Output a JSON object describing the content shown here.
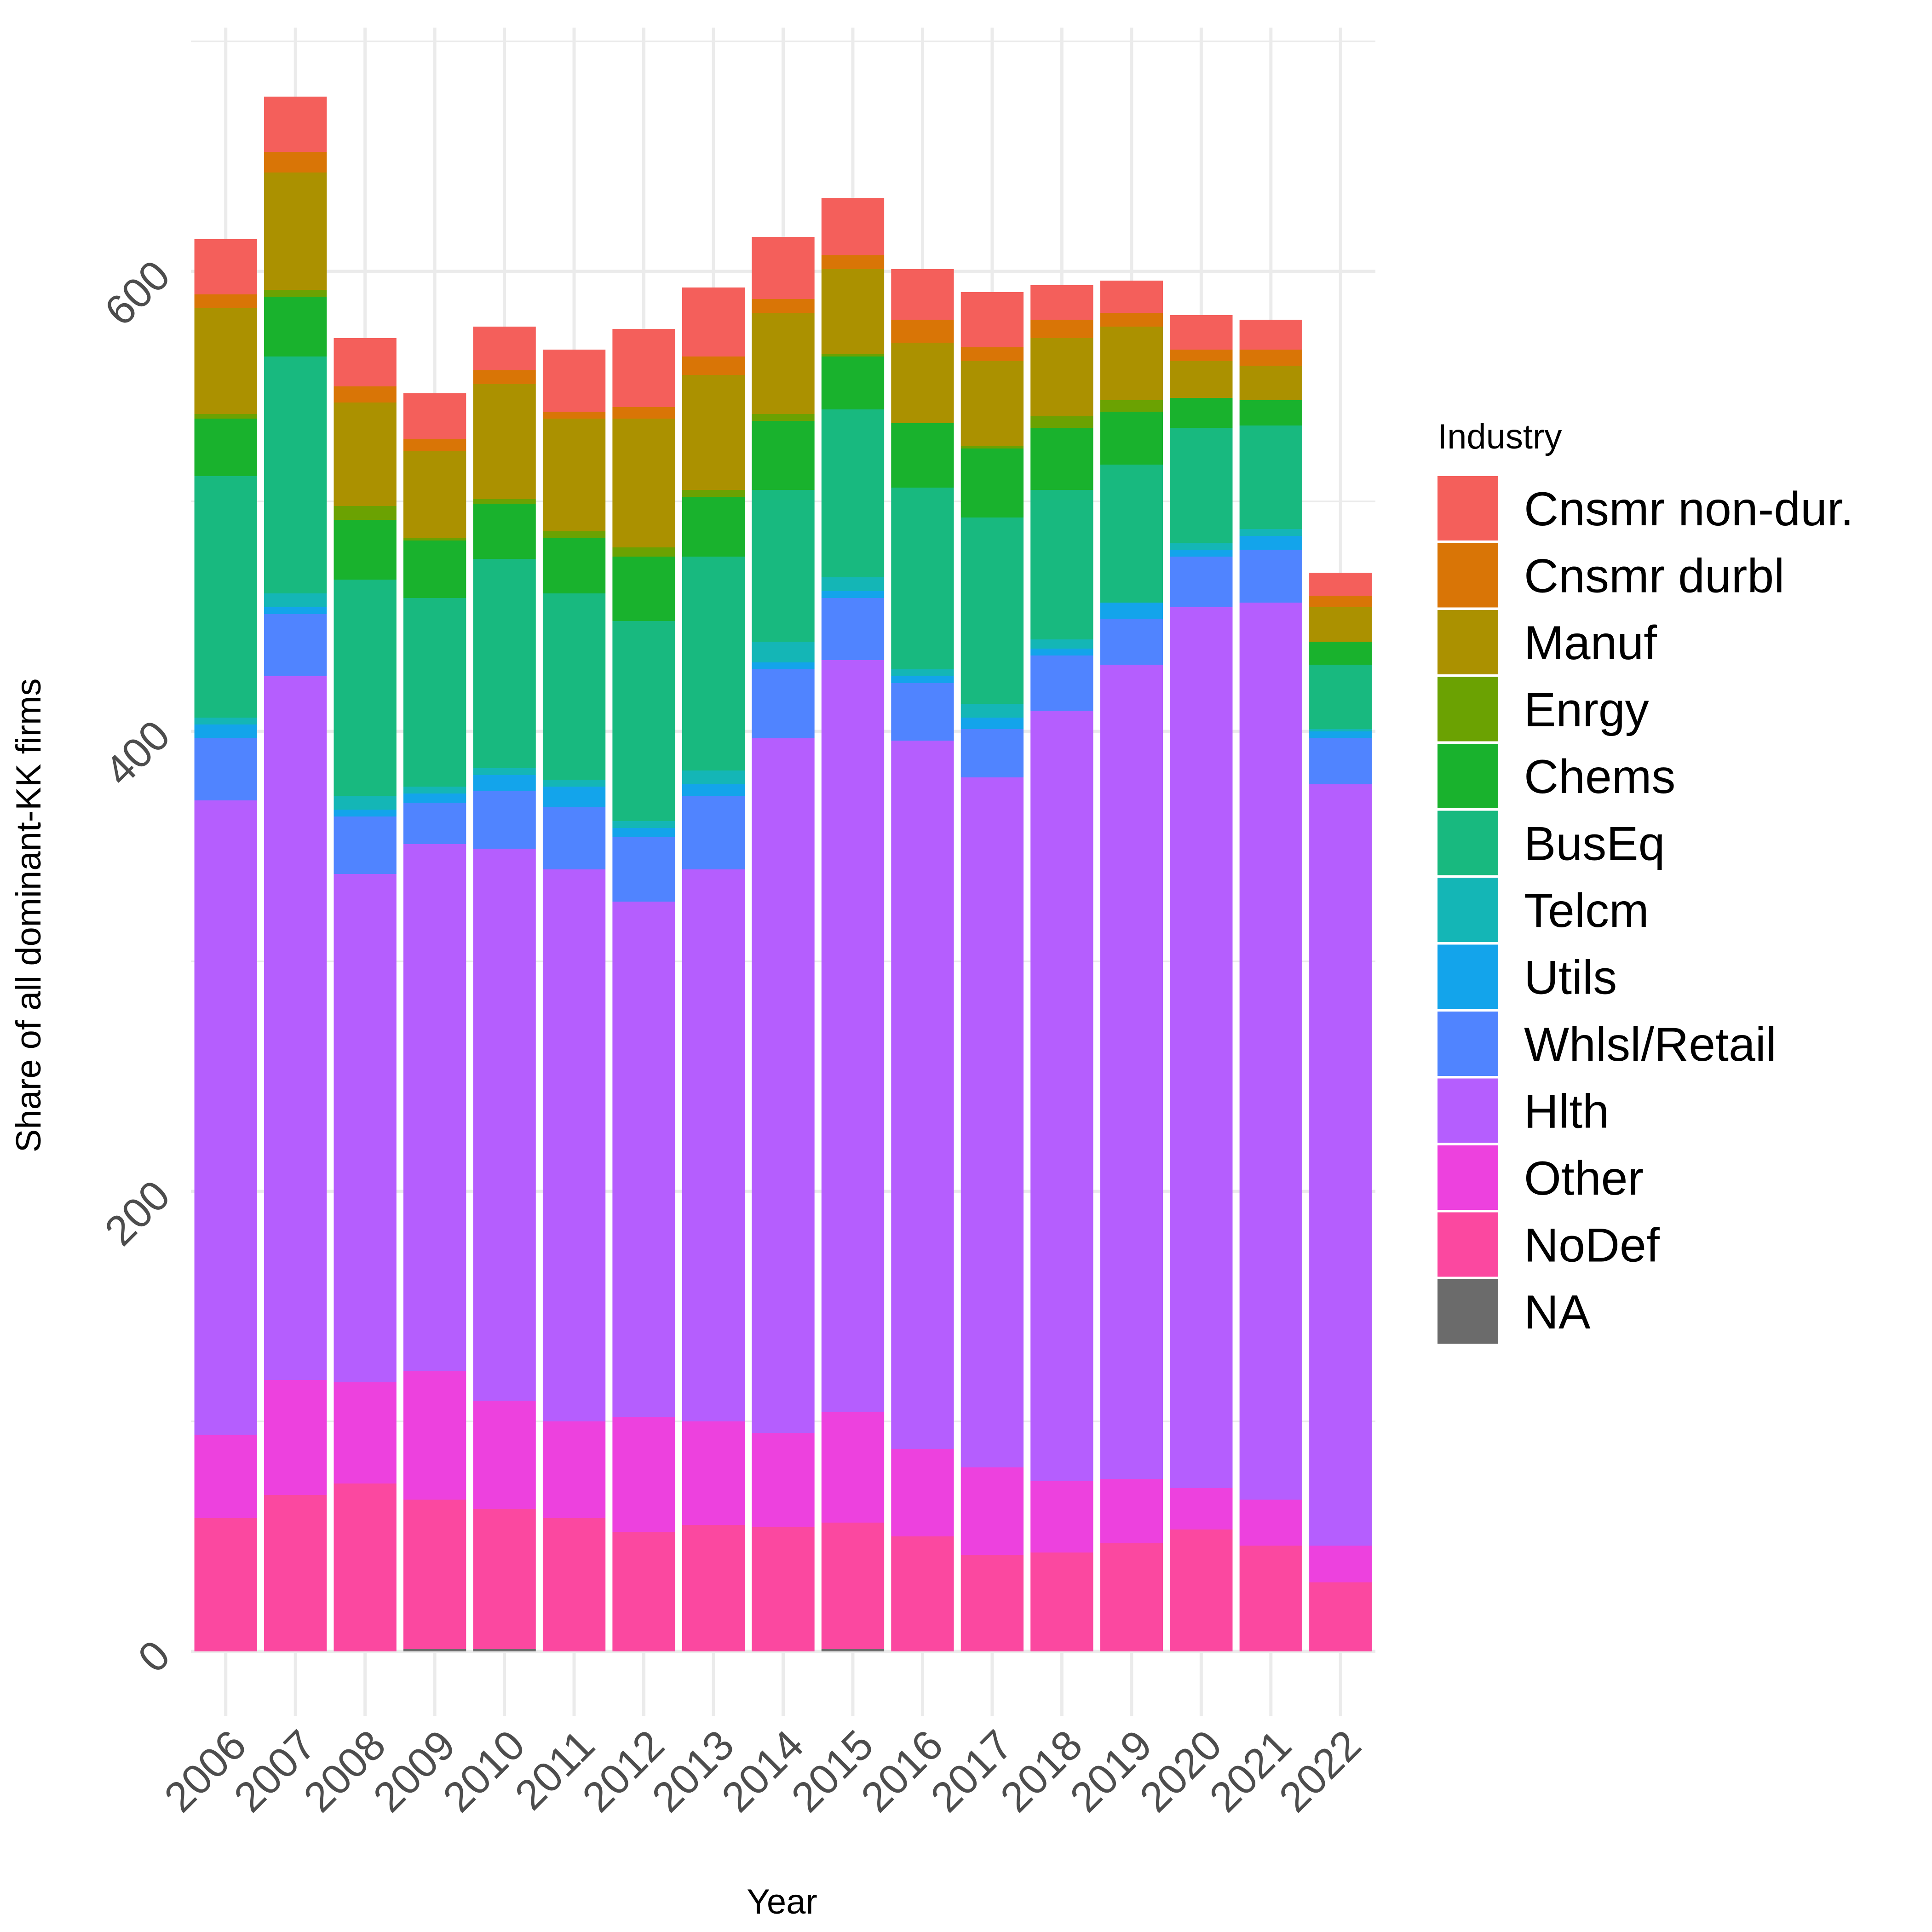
{
  "chart_data": {
    "type": "bar",
    "stacked": true,
    "title": "",
    "xlabel": "Year",
    "ylabel": "Share of all dominant-KK firms",
    "ylim": [
      -25,
      705
    ],
    "yticks": [
      0,
      200,
      400,
      600
    ],
    "grid": true,
    "legend": {
      "title": "Industry",
      "position": "right"
    },
    "categories": [
      "2006",
      "2007",
      "2008",
      "2009",
      "2010",
      "2011",
      "2012",
      "2013",
      "2014",
      "2015",
      "2016",
      "2017",
      "2018",
      "2019",
      "2020",
      "2021",
      "2022"
    ],
    "series": [
      {
        "name": "NA",
        "color": "#6b6b6b",
        "values": [
          0,
          0,
          0,
          1,
          1,
          0,
          0,
          0,
          0,
          1,
          0,
          0,
          0,
          0,
          0,
          0,
          0
        ]
      },
      {
        "name": "NoDef",
        "color": "#fb48a0",
        "values": [
          58,
          68,
          73,
          65,
          61,
          58,
          52,
          55,
          54,
          55,
          50,
          42,
          43,
          47,
          53,
          46,
          30
        ]
      },
      {
        "name": "Other",
        "color": "#ed41de",
        "values": [
          36,
          50,
          44,
          56,
          47,
          42,
          50,
          45,
          41,
          48,
          38,
          38,
          31,
          28,
          18,
          20,
          16
        ]
      },
      {
        "name": "Hlth",
        "color": "#b55efe",
        "values": [
          276,
          306,
          221,
          229,
          240,
          240,
          224,
          240,
          302,
          327,
          308,
          300,
          335,
          354,
          383,
          390,
          331
        ]
      },
      {
        "name": "Whlsl/Retail",
        "color": "#5084ff",
        "values": [
          27,
          27,
          25,
          18,
          25,
          27,
          28,
          32,
          30,
          27,
          25,
          21,
          24,
          20,
          22,
          23,
          20
        ]
      },
      {
        "name": "Utils",
        "color": "#13a4eb",
        "values": [
          6,
          3,
          3,
          4,
          7,
          9,
          4,
          5,
          3,
          3,
          3,
          5,
          3,
          7,
          3,
          6,
          3
        ]
      },
      {
        "name": "Telcm",
        "color": "#14b6b6",
        "values": [
          3,
          6,
          6,
          3,
          3,
          3,
          3,
          6,
          9,
          6,
          3,
          6,
          4,
          0,
          3,
          3,
          1
        ]
      },
      {
        "name": "BusEq",
        "color": "#18b97f",
        "values": [
          105,
          103,
          94,
          82,
          91,
          81,
          87,
          93,
          66,
          73,
          79,
          81,
          65,
          60,
          50,
          45,
          28
        ]
      },
      {
        "name": "Chems",
        "color": "#19b22d",
        "values": [
          25,
          26,
          26,
          25,
          24,
          24,
          28,
          26,
          30,
          23,
          28,
          30,
          27,
          23,
          13,
          11,
          10
        ]
      },
      {
        "name": "Enrgy",
        "color": "#6ba202",
        "values": [
          2,
          3,
          6,
          1,
          2,
          3,
          4,
          3,
          3,
          1,
          0,
          1,
          5,
          5,
          0,
          0,
          0
        ]
      },
      {
        "name": "Manuf",
        "color": "#ab9100",
        "values": [
          46,
          51,
          45,
          38,
          50,
          49,
          56,
          50,
          44,
          37,
          35,
          37,
          34,
          32,
          16,
          15,
          15
        ]
      },
      {
        "name": "Cnsmr durbl",
        "color": "#d97506",
        "values": [
          6,
          9,
          7,
          5,
          6,
          3,
          5,
          8,
          6,
          6,
          10,
          6,
          8,
          6,
          5,
          7,
          5
        ]
      },
      {
        "name": "Cnsmr non-dur.",
        "color": "#f45f5b",
        "values": [
          24,
          24,
          21,
          20,
          19,
          27,
          34,
          30,
          27,
          25,
          22,
          24,
          15,
          14,
          15,
          13,
          10
        ]
      }
    ],
    "legend_order": [
      "Cnsmr non-dur.",
      "Cnsmr durbl",
      "Manuf",
      "Enrgy",
      "Chems",
      "BusEq",
      "Telcm",
      "Utils",
      "Whlsl/Retail",
      "Hlth",
      "Other",
      "NoDef",
      "NA"
    ]
  }
}
